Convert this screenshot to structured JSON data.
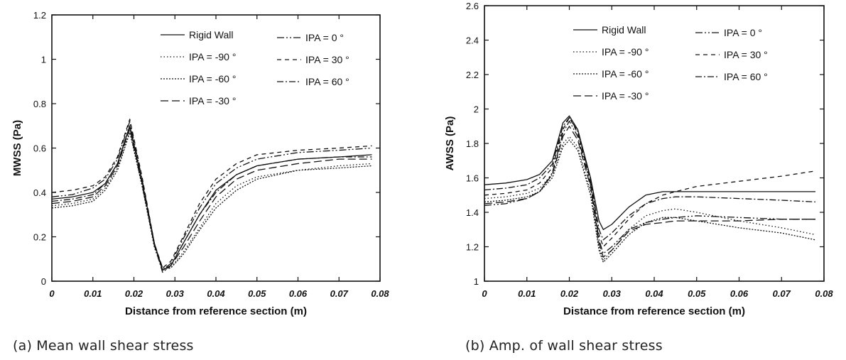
{
  "captions": [
    "(a) Mean wall shear stress",
    "(b) Amp. of wall shear stress"
  ],
  "legend_labels": [
    "Rigid Wall",
    "IPA = -90 °",
    "IPA = -60 °",
    "IPA = -30 °",
    "IPA =  0 °",
    "IPA = 30 °",
    "IPA = 60 °"
  ],
  "chart_data": [
    {
      "type": "line",
      "title": "",
      "xlabel": "Distance from reference section  (m)",
      "ylabel": "MWSS  (Pa)",
      "xlim": [
        0,
        0.08
      ],
      "ylim": [
        0,
        1.2
      ],
      "xticks": [
        "0",
        "0.01",
        "0.02",
        "0.03",
        "0.04",
        "0.05",
        "0.06",
        "0.07",
        "0.08"
      ],
      "yticks": [
        "0",
        "0.2",
        "0.4",
        "0.6",
        "0.8",
        "1",
        "1.2"
      ],
      "grid": false,
      "legend_position": "top-center",
      "x": [
        0,
        0.005,
        0.01,
        0.013,
        0.016,
        0.019,
        0.022,
        0.025,
        0.027,
        0.029,
        0.032,
        0.036,
        0.04,
        0.045,
        0.05,
        0.06,
        0.07,
        0.078
      ],
      "series": [
        {
          "name": "Rigid Wall",
          "dash": "solid",
          "values": [
            0.37,
            0.38,
            0.4,
            0.44,
            0.53,
            0.7,
            0.45,
            0.17,
            0.05,
            0.07,
            0.17,
            0.3,
            0.41,
            0.48,
            0.52,
            0.55,
            0.56,
            0.57
          ]
        },
        {
          "name": "IPA = -90 °",
          "dash": "dotted",
          "values": [
            0.34,
            0.35,
            0.37,
            0.42,
            0.51,
            0.68,
            0.43,
            0.15,
            0.05,
            0.06,
            0.13,
            0.24,
            0.35,
            0.43,
            0.47,
            0.5,
            0.52,
            0.53
          ]
        },
        {
          "name": "IPA = -60 °",
          "dash": "dense-dots",
          "values": [
            0.33,
            0.34,
            0.36,
            0.41,
            0.5,
            0.67,
            0.43,
            0.16,
            0.06,
            0.06,
            0.12,
            0.23,
            0.33,
            0.41,
            0.46,
            0.5,
            0.51,
            0.52
          ]
        },
        {
          "name": "IPA = -30 °",
          "dash": "long-dash",
          "values": [
            0.35,
            0.36,
            0.38,
            0.43,
            0.52,
            0.69,
            0.44,
            0.16,
            0.05,
            0.07,
            0.15,
            0.27,
            0.38,
            0.46,
            0.5,
            0.53,
            0.55,
            0.55
          ]
        },
        {
          "name": "IPA =  0 °",
          "dash": "dash-dot-dot",
          "values": [
            0.38,
            0.39,
            0.42,
            0.46,
            0.55,
            0.72,
            0.46,
            0.17,
            0.05,
            0.08,
            0.19,
            0.33,
            0.44,
            0.51,
            0.55,
            0.58,
            0.59,
            0.6
          ]
        },
        {
          "name": "IPA = 30 °",
          "dash": "short-dash",
          "values": [
            0.4,
            0.41,
            0.43,
            0.47,
            0.56,
            0.73,
            0.47,
            0.17,
            0.06,
            0.09,
            0.2,
            0.35,
            0.46,
            0.53,
            0.57,
            0.59,
            0.6,
            0.61
          ]
        },
        {
          "name": "IPA = 60 °",
          "dash": "dash-dot",
          "values": [
            0.36,
            0.37,
            0.39,
            0.44,
            0.53,
            0.7,
            0.45,
            0.16,
            0.04,
            0.07,
            0.17,
            0.3,
            0.4,
            0.48,
            0.52,
            0.55,
            0.56,
            0.56
          ]
        }
      ]
    },
    {
      "type": "line",
      "title": "",
      "xlabel": "Distance from reference section  (m)",
      "ylabel": "AWSS  (Pa)",
      "xlim": [
        0,
        0.08
      ],
      "ylim": [
        1,
        2.6
      ],
      "xticks": [
        "0",
        "0.01",
        "0.02",
        "0.03",
        "0.04",
        "0.05",
        "0.06",
        "0.07",
        "0.08"
      ],
      "yticks": [
        "1",
        "1.2",
        "1.4",
        "1.6",
        "1.8",
        "2",
        "2.2",
        "2.4",
        "2.6"
      ],
      "grid": false,
      "legend_position": "top-center",
      "x": [
        0,
        0.005,
        0.01,
        0.013,
        0.016,
        0.0185,
        0.02,
        0.022,
        0.025,
        0.027,
        0.028,
        0.03,
        0.034,
        0.038,
        0.042,
        0.045,
        0.05,
        0.06,
        0.07,
        0.078
      ],
      "series": [
        {
          "name": "Rigid Wall",
          "dash": "solid",
          "values": [
            1.56,
            1.57,
            1.59,
            1.62,
            1.7,
            1.92,
            1.96,
            1.88,
            1.6,
            1.35,
            1.3,
            1.33,
            1.43,
            1.5,
            1.52,
            1.52,
            1.52,
            1.52,
            1.52,
            1.52
          ]
        },
        {
          "name": "IPA = -90 °",
          "dash": "dotted",
          "values": [
            1.48,
            1.49,
            1.51,
            1.54,
            1.62,
            1.8,
            1.84,
            1.78,
            1.52,
            1.2,
            1.12,
            1.18,
            1.3,
            1.38,
            1.41,
            1.42,
            1.4,
            1.35,
            1.31,
            1.27
          ]
        },
        {
          "name": "IPA = -60 °",
          "dash": "dense-dots",
          "values": [
            1.46,
            1.47,
            1.49,
            1.52,
            1.6,
            1.78,
            1.82,
            1.76,
            1.5,
            1.18,
            1.11,
            1.16,
            1.27,
            1.34,
            1.37,
            1.37,
            1.35,
            1.31,
            1.28,
            1.24
          ]
        },
        {
          "name": "IPA = -30 °",
          "dash": "long-dash",
          "values": [
            1.45,
            1.46,
            1.48,
            1.52,
            1.62,
            1.84,
            1.9,
            1.82,
            1.55,
            1.22,
            1.14,
            1.18,
            1.29,
            1.33,
            1.34,
            1.35,
            1.35,
            1.35,
            1.36,
            1.36
          ]
        },
        {
          "name": "IPA =  0 °",
          "dash": "dash-dot-dot",
          "values": [
            1.44,
            1.45,
            1.48,
            1.52,
            1.63,
            1.86,
            1.93,
            1.84,
            1.56,
            1.24,
            1.16,
            1.2,
            1.3,
            1.34,
            1.36,
            1.37,
            1.38,
            1.37,
            1.36,
            1.36
          ]
        },
        {
          "name": "IPA = 30 °",
          "dash": "short-dash",
          "values": [
            1.5,
            1.51,
            1.53,
            1.57,
            1.66,
            1.88,
            1.95,
            1.86,
            1.58,
            1.27,
            1.2,
            1.25,
            1.36,
            1.45,
            1.5,
            1.52,
            1.55,
            1.58,
            1.61,
            1.64
          ]
        },
        {
          "name": "IPA = 60 °",
          "dash": "dash-dot",
          "values": [
            1.53,
            1.54,
            1.56,
            1.6,
            1.68,
            1.9,
            1.95,
            1.87,
            1.59,
            1.3,
            1.24,
            1.28,
            1.38,
            1.45,
            1.48,
            1.49,
            1.49,
            1.48,
            1.47,
            1.46
          ]
        }
      ]
    }
  ]
}
